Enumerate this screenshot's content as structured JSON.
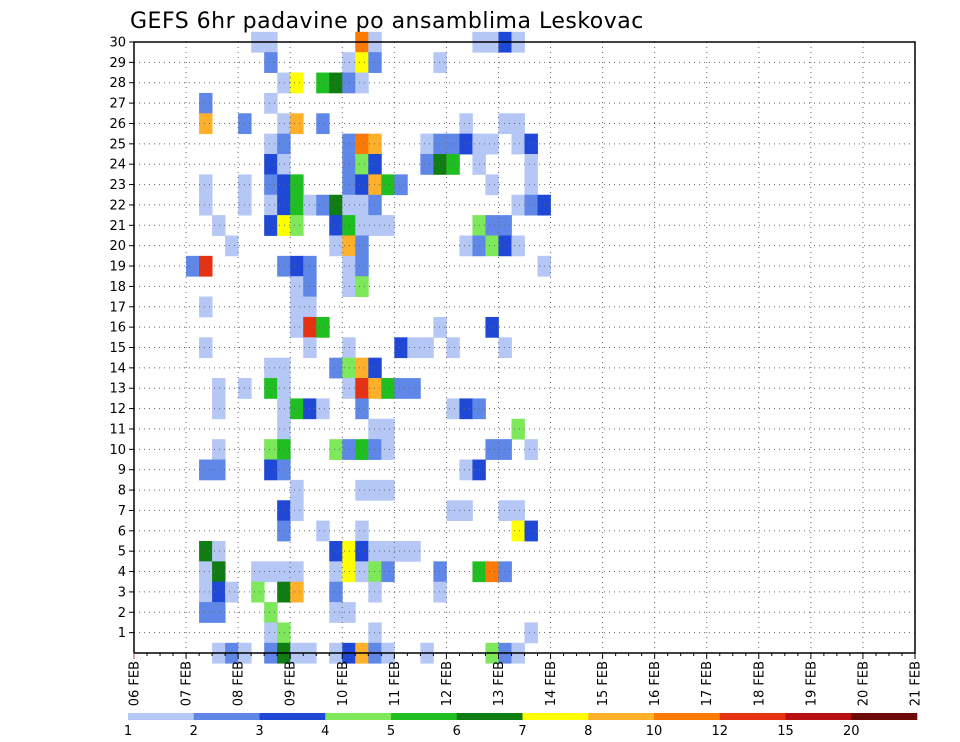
{
  "chart_data": {
    "type": "heatmap",
    "title": "GEFS 6hr padavine po ansamblima Leskovac",
    "xlabel": "",
    "ylabel": "",
    "x_tick_labels": [
      "06 FEB",
      "07 FEB",
      "08 FEB",
      "09 FEB",
      "10 FEB",
      "11 FEB",
      "12 FEB",
      "13 FEB",
      "14 FEB",
      "15 FEB",
      "16 FEB",
      "17 FEB",
      "18 FEB",
      "19 FEB",
      "20 FEB",
      "21 FEB"
    ],
    "y_tick_labels": [
      "1",
      "2",
      "3",
      "4",
      "5",
      "6",
      "7",
      "8",
      "9",
      "10",
      "11",
      "12",
      "13",
      "14",
      "15",
      "16",
      "17",
      "18",
      "19",
      "20",
      "21",
      "22",
      "23",
      "24",
      "25",
      "26",
      "27",
      "28",
      "29",
      "30"
    ],
    "x_range_steps": [
      0,
      60
    ],
    "y_range_members": [
      0,
      30
    ],
    "grid": true,
    "colorbar": {
      "labels": [
        "1",
        "2",
        "3",
        "4",
        "5",
        "6",
        "7",
        "8",
        "10",
        "12",
        "15",
        "20"
      ],
      "colors": [
        "#b4c7f5",
        "#5f87e8",
        "#1f48d6",
        "#7de85a",
        "#1fbe21",
        "#0f7d12",
        "#ffff00",
        "#ffb02a",
        "#fb7a05",
        "#e53212",
        "#b81010",
        "#6d0a0a"
      ]
    },
    "cells": [
      [
        30,
        9,
        0
      ],
      [
        30,
        10,
        0
      ],
      [
        30,
        17,
        8
      ],
      [
        30,
        18,
        0
      ],
      [
        30,
        26,
        0
      ],
      [
        30,
        27,
        0
      ],
      [
        30,
        28,
        2
      ],
      [
        30,
        29,
        0
      ],
      [
        29,
        10,
        1
      ],
      [
        29,
        16,
        0
      ],
      [
        29,
        17,
        6
      ],
      [
        29,
        18,
        1
      ],
      [
        29,
        23,
        0
      ],
      [
        28,
        11,
        0
      ],
      [
        28,
        12,
        6
      ],
      [
        28,
        14,
        4
      ],
      [
        28,
        15,
        5
      ],
      [
        28,
        16,
        1
      ],
      [
        28,
        17,
        0
      ],
      [
        27,
        5,
        1
      ],
      [
        27,
        10,
        0
      ],
      [
        26,
        5,
        7
      ],
      [
        26,
        8,
        1
      ],
      [
        26,
        11,
        0
      ],
      [
        26,
        12,
        7
      ],
      [
        26,
        14,
        1
      ],
      [
        26,
        25,
        0
      ],
      [
        26,
        28,
        0
      ],
      [
        26,
        29,
        0
      ],
      [
        25,
        10,
        0
      ],
      [
        25,
        11,
        1
      ],
      [
        25,
        16,
        1
      ],
      [
        25,
        17,
        8
      ],
      [
        25,
        18,
        7
      ],
      [
        25,
        22,
        0
      ],
      [
        25,
        23,
        1
      ],
      [
        25,
        24,
        1
      ],
      [
        25,
        25,
        2
      ],
      [
        25,
        26,
        0
      ],
      [
        25,
        27,
        0
      ],
      [
        25,
        29,
        0
      ],
      [
        25,
        30,
        2
      ],
      [
        24,
        10,
        2
      ],
      [
        24,
        11,
        0
      ],
      [
        24,
        16,
        1
      ],
      [
        24,
        17,
        3
      ],
      [
        24,
        18,
        2
      ],
      [
        24,
        22,
        1
      ],
      [
        24,
        23,
        5
      ],
      [
        24,
        24,
        4
      ],
      [
        24,
        26,
        0
      ],
      [
        24,
        30,
        0
      ],
      [
        23,
        5,
        0
      ],
      [
        23,
        8,
        0
      ],
      [
        23,
        10,
        1
      ],
      [
        23,
        11,
        2
      ],
      [
        23,
        12,
        4
      ],
      [
        23,
        16,
        1
      ],
      [
        23,
        17,
        2
      ],
      [
        23,
        18,
        7
      ],
      [
        23,
        19,
        4
      ],
      [
        23,
        20,
        1
      ],
      [
        23,
        27,
        0
      ],
      [
        23,
        30,
        0
      ],
      [
        22,
        5,
        0
      ],
      [
        22,
        8,
        0
      ],
      [
        22,
        10,
        0
      ],
      [
        22,
        11,
        2
      ],
      [
        22,
        12,
        4
      ],
      [
        22,
        13,
        0
      ],
      [
        22,
        14,
        1
      ],
      [
        22,
        15,
        5
      ],
      [
        22,
        16,
        0
      ],
      [
        22,
        17,
        0
      ],
      [
        22,
        18,
        1
      ],
      [
        22,
        29,
        0
      ],
      [
        22,
        30,
        1
      ],
      [
        22,
        31,
        2
      ],
      [
        21,
        6,
        0
      ],
      [
        21,
        10,
        2
      ],
      [
        21,
        11,
        6
      ],
      [
        21,
        12,
        3
      ],
      [
        21,
        15,
        2
      ],
      [
        21,
        16,
        4
      ],
      [
        21,
        17,
        0
      ],
      [
        21,
        18,
        0
      ],
      [
        21,
        19,
        0
      ],
      [
        21,
        26,
        3
      ],
      [
        21,
        27,
        1
      ],
      [
        21,
        28,
        1
      ],
      [
        20,
        7,
        0
      ],
      [
        20,
        15,
        0
      ],
      [
        20,
        16,
        7
      ],
      [
        20,
        17,
        1
      ],
      [
        20,
        25,
        0
      ],
      [
        20,
        26,
        1
      ],
      [
        20,
        27,
        3
      ],
      [
        20,
        28,
        2
      ],
      [
        20,
        29,
        0
      ],
      [
        19,
        4,
        1
      ],
      [
        19,
        5,
        9
      ],
      [
        19,
        11,
        1
      ],
      [
        19,
        12,
        2
      ],
      [
        19,
        13,
        1
      ],
      [
        19,
        16,
        0
      ],
      [
        19,
        17,
        1
      ],
      [
        19,
        31,
        0
      ],
      [
        18,
        12,
        0
      ],
      [
        18,
        13,
        1
      ],
      [
        18,
        16,
        0
      ],
      [
        18,
        17,
        3
      ],
      [
        17,
        5,
        0
      ],
      [
        17,
        12,
        0
      ],
      [
        17,
        13,
        0
      ],
      [
        16,
        12,
        0
      ],
      [
        16,
        13,
        9
      ],
      [
        16,
        14,
        4
      ],
      [
        16,
        23,
        0
      ],
      [
        16,
        27,
        2
      ],
      [
        15,
        5,
        0
      ],
      [
        15,
        13,
        0
      ],
      [
        15,
        16,
        0
      ],
      [
        15,
        20,
        2
      ],
      [
        15,
        21,
        0
      ],
      [
        15,
        22,
        0
      ],
      [
        15,
        24,
        0
      ],
      [
        15,
        28,
        0
      ],
      [
        14,
        10,
        0
      ],
      [
        14,
        11,
        0
      ],
      [
        14,
        15,
        1
      ],
      [
        14,
        16,
        3
      ],
      [
        14,
        17,
        7
      ],
      [
        14,
        18,
        2
      ],
      [
        13,
        6,
        0
      ],
      [
        13,
        8,
        0
      ],
      [
        13,
        10,
        4
      ],
      [
        13,
        11,
        0
      ],
      [
        13,
        16,
        0
      ],
      [
        13,
        17,
        9
      ],
      [
        13,
        18,
        7
      ],
      [
        13,
        19,
        4
      ],
      [
        13,
        20,
        1
      ],
      [
        13,
        21,
        1
      ],
      [
        12,
        6,
        0
      ],
      [
        12,
        11,
        0
      ],
      [
        12,
        12,
        4
      ],
      [
        12,
        13,
        2
      ],
      [
        12,
        14,
        0
      ],
      [
        12,
        17,
        1
      ],
      [
        12,
        24,
        0
      ],
      [
        12,
        25,
        2
      ],
      [
        12,
        26,
        1
      ],
      [
        11,
        11,
        0
      ],
      [
        11,
        18,
        0
      ],
      [
        11,
        19,
        0
      ],
      [
        11,
        29,
        3
      ],
      [
        10,
        6,
        0
      ],
      [
        10,
        10,
        3
      ],
      [
        10,
        11,
        4
      ],
      [
        10,
        15,
        3
      ],
      [
        10,
        16,
        1
      ],
      [
        10,
        17,
        4
      ],
      [
        10,
        18,
        1
      ],
      [
        10,
        19,
        0
      ],
      [
        10,
        27,
        1
      ],
      [
        10,
        28,
        1
      ],
      [
        10,
        30,
        0
      ],
      [
        9,
        5,
        1
      ],
      [
        9,
        6,
        1
      ],
      [
        9,
        10,
        2
      ],
      [
        9,
        11,
        1
      ],
      [
        9,
        25,
        0
      ],
      [
        9,
        26,
        2
      ],
      [
        8,
        12,
        0
      ],
      [
        8,
        17,
        0
      ],
      [
        8,
        18,
        0
      ],
      [
        8,
        19,
        0
      ],
      [
        7,
        11,
        2
      ],
      [
        7,
        12,
        0
      ],
      [
        7,
        24,
        0
      ],
      [
        7,
        25,
        0
      ],
      [
        7,
        28,
        0
      ],
      [
        7,
        29,
        0
      ],
      [
        6,
        11,
        1
      ],
      [
        6,
        14,
        0
      ],
      [
        6,
        17,
        0
      ],
      [
        6,
        29,
        6
      ],
      [
        6,
        30,
        2
      ],
      [
        5,
        5,
        5
      ],
      [
        5,
        6,
        0
      ],
      [
        5,
        15,
        2
      ],
      [
        5,
        16,
        6
      ],
      [
        5,
        17,
        2
      ],
      [
        5,
        18,
        0
      ],
      [
        5,
        19,
        0
      ],
      [
        5,
        20,
        0
      ],
      [
        5,
        21,
        0
      ],
      [
        4,
        5,
        0
      ],
      [
        4,
        6,
        5
      ],
      [
        4,
        9,
        0
      ],
      [
        4,
        10,
        0
      ],
      [
        4,
        11,
        0
      ],
      [
        4,
        12,
        0
      ],
      [
        4,
        15,
        0
      ],
      [
        4,
        16,
        6
      ],
      [
        4,
        17,
        0
      ],
      [
        4,
        18,
        3
      ],
      [
        4,
        19,
        1
      ],
      [
        4,
        23,
        1
      ],
      [
        4,
        26,
        4
      ],
      [
        4,
        27,
        8
      ],
      [
        4,
        28,
        1
      ],
      [
        3,
        5,
        0
      ],
      [
        3,
        6,
        2
      ],
      [
        3,
        7,
        0
      ],
      [
        3,
        9,
        3
      ],
      [
        3,
        11,
        5
      ],
      [
        3,
        12,
        7
      ],
      [
        3,
        15,
        1
      ],
      [
        3,
        18,
        0
      ],
      [
        3,
        23,
        0
      ],
      [
        2,
        5,
        1
      ],
      [
        2,
        6,
        1
      ],
      [
        2,
        10,
        3
      ],
      [
        2,
        15,
        0
      ],
      [
        2,
        16,
        0
      ],
      [
        1,
        10,
        0
      ],
      [
        1,
        11,
        3
      ],
      [
        1,
        18,
        0
      ],
      [
        1,
        30,
        0
      ],
      [
        0,
        6,
        0
      ],
      [
        0,
        7,
        1
      ],
      [
        0,
        8,
        0
      ],
      [
        0,
        10,
        1
      ],
      [
        0,
        11,
        5
      ],
      [
        0,
        12,
        0
      ],
      [
        0,
        13,
        0
      ],
      [
        0,
        15,
        0
      ],
      [
        0,
        16,
        2
      ],
      [
        0,
        17,
        7
      ],
      [
        0,
        18,
        1
      ],
      [
        0,
        19,
        0
      ],
      [
        0,
        22,
        0
      ],
      [
        0,
        27,
        3
      ],
      [
        0,
        28,
        1
      ],
      [
        0,
        29,
        0
      ]
    ]
  }
}
